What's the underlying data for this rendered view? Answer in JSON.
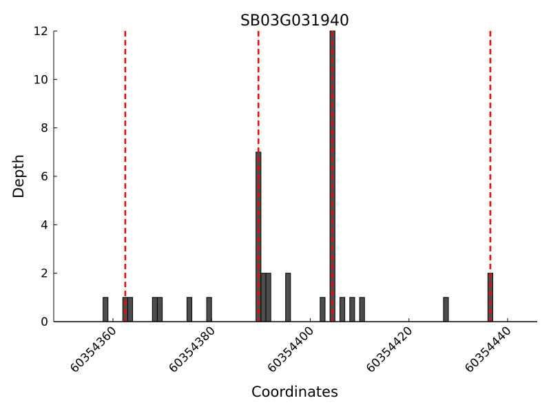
{
  "chart_data": {
    "type": "bar",
    "title": "SB03G031940",
    "xlabel": "Coordinates",
    "ylabel": "Depth",
    "xlim": [
      60354348,
      60354446
    ],
    "ylim": [
      0,
      12
    ],
    "xticks": [
      60354360,
      60354380,
      60354400,
      60354420,
      60354440
    ],
    "yticks": [
      0,
      2,
      4,
      6,
      8,
      10,
      12
    ],
    "grid": false,
    "bar_color": "#4d4d4d",
    "bar_edge_color": "#000000",
    "bars": [
      {
        "x": 60354358,
        "depth": 1
      },
      {
        "x": 60354362,
        "depth": 1
      },
      {
        "x": 60354363,
        "depth": 1
      },
      {
        "x": 60354368,
        "depth": 1
      },
      {
        "x": 60354369,
        "depth": 1
      },
      {
        "x": 60354375,
        "depth": 1
      },
      {
        "x": 60354379,
        "depth": 1
      },
      {
        "x": 60354389,
        "depth": 7
      },
      {
        "x": 60354390,
        "depth": 2
      },
      {
        "x": 60354391,
        "depth": 2
      },
      {
        "x": 60354395,
        "depth": 2
      },
      {
        "x": 60354402,
        "depth": 1
      },
      {
        "x": 60354404,
        "depth": 12
      },
      {
        "x": 60354406,
        "depth": 1
      },
      {
        "x": 60354408,
        "depth": 1
      },
      {
        "x": 60354410,
        "depth": 1
      },
      {
        "x": 60354427,
        "depth": 1
      },
      {
        "x": 60354436,
        "depth": 2
      }
    ],
    "vlines": {
      "color": "#ff0000",
      "style": "dashed",
      "x": [
        60354362.5,
        60354389.5,
        60354404.5,
        60354436.5
      ]
    }
  }
}
